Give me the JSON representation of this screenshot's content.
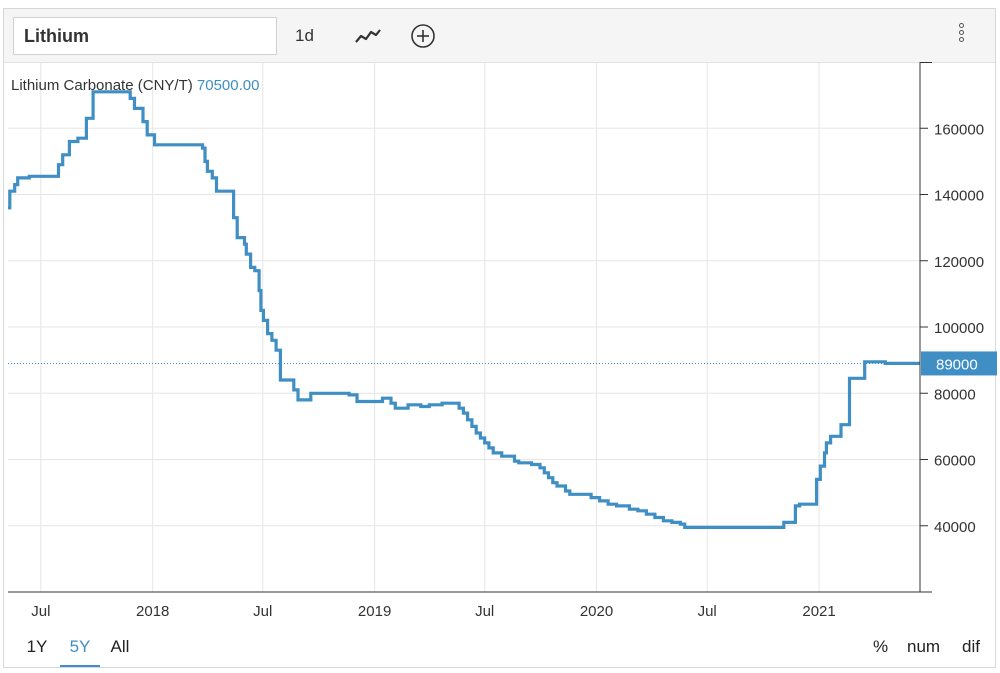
{
  "toolbar": {
    "symbol": "Lithium",
    "interval": "1d"
  },
  "legend": {
    "series_name": "Lithium Carbonate (CNY/T)",
    "series_value": "70500.00"
  },
  "ranges": {
    "one_year": "1Y",
    "five_year": "5Y",
    "all": "All",
    "active": "5Y"
  },
  "modes": {
    "percent": "%",
    "num": "num",
    "dif": "dif"
  },
  "colors": {
    "series": "#3f8ec4",
    "grid": "#e6e6e6"
  },
  "chart_data": {
    "type": "line",
    "title": "",
    "xlabel": "",
    "ylabel": "",
    "ylim": [
      20000,
      180000
    ],
    "y_ticks": [
      40000,
      60000,
      80000,
      100000,
      120000,
      140000,
      160000
    ],
    "y_tick_labels": [
      "40000",
      "60000",
      "80000",
      "100000",
      "120000",
      "140000",
      "160000"
    ],
    "x_ticks": [
      {
        "date": "2017-07-01",
        "label": "Jul"
      },
      {
        "date": "2018-01-01",
        "label": "2018"
      },
      {
        "date": "2018-07-01",
        "label": "Jul"
      },
      {
        "date": "2019-01-01",
        "label": "2019"
      },
      {
        "date": "2019-07-01",
        "label": "Jul"
      },
      {
        "date": "2020-01-01",
        "label": "2020"
      },
      {
        "date": "2020-07-01",
        "label": "Jul"
      },
      {
        "date": "2021-01-01",
        "label": "2021"
      }
    ],
    "x_range": [
      "2017-05-08",
      "2021-06-16"
    ],
    "last_value_label": "89000",
    "last_value": 89000,
    "series": [
      {
        "points": [
          [
            "2017-05-08",
            136000
          ],
          [
            "2017-05-11",
            136000
          ],
          [
            "2017-05-11",
            141000
          ],
          [
            "2017-05-19",
            141000
          ],
          [
            "2017-05-19",
            143000
          ],
          [
            "2017-05-24",
            143000
          ],
          [
            "2017-05-24",
            145000
          ],
          [
            "2017-06-12",
            145000
          ],
          [
            "2017-06-12",
            145500
          ],
          [
            "2017-07-30",
            145500
          ],
          [
            "2017-07-30",
            149000
          ],
          [
            "2017-08-06",
            149000
          ],
          [
            "2017-08-06",
            152000
          ],
          [
            "2017-08-17",
            152000
          ],
          [
            "2017-08-17",
            156000
          ],
          [
            "2017-08-31",
            156000
          ],
          [
            "2017-08-31",
            157000
          ],
          [
            "2017-09-14",
            157000
          ],
          [
            "2017-09-14",
            163000
          ],
          [
            "2017-09-25",
            163000
          ],
          [
            "2017-09-25",
            171000
          ],
          [
            "2017-11-25",
            171000
          ],
          [
            "2017-11-25",
            169000
          ],
          [
            "2017-12-02",
            169000
          ],
          [
            "2017-12-02",
            166000
          ],
          [
            "2017-12-16",
            166000
          ],
          [
            "2017-12-16",
            162000
          ],
          [
            "2017-12-23",
            162000
          ],
          [
            "2017-12-23",
            158000
          ],
          [
            "2018-01-04",
            158000
          ],
          [
            "2018-01-04",
            155000
          ],
          [
            "2018-03-24",
            155000
          ],
          [
            "2018-03-24",
            154000
          ],
          [
            "2018-03-28",
            154000
          ],
          [
            "2018-03-28",
            150000
          ],
          [
            "2018-04-01",
            150000
          ],
          [
            "2018-04-01",
            147000
          ],
          [
            "2018-04-09",
            147000
          ],
          [
            "2018-04-09",
            145000
          ],
          [
            "2018-04-16",
            145000
          ],
          [
            "2018-04-16",
            141000
          ],
          [
            "2018-05-14",
            141000
          ],
          [
            "2018-05-14",
            133000
          ],
          [
            "2018-05-20",
            133000
          ],
          [
            "2018-05-20",
            127000
          ],
          [
            "2018-06-01",
            127000
          ],
          [
            "2018-06-01",
            125000
          ],
          [
            "2018-06-04",
            125000
          ],
          [
            "2018-06-04",
            122000
          ],
          [
            "2018-06-11",
            122000
          ],
          [
            "2018-06-11",
            118000
          ],
          [
            "2018-06-18",
            118000
          ],
          [
            "2018-06-18",
            117000
          ],
          [
            "2018-06-25",
            117000
          ],
          [
            "2018-06-25",
            111000
          ],
          [
            "2018-06-28",
            111000
          ],
          [
            "2018-06-28",
            105000
          ],
          [
            "2018-07-02",
            105000
          ],
          [
            "2018-07-02",
            102000
          ],
          [
            "2018-07-09",
            102000
          ],
          [
            "2018-07-09",
            98000
          ],
          [
            "2018-07-16",
            98000
          ],
          [
            "2018-07-16",
            96000
          ],
          [
            "2018-07-23",
            96000
          ],
          [
            "2018-07-23",
            93000
          ],
          [
            "2018-07-30",
            93000
          ],
          [
            "2018-07-30",
            84000
          ],
          [
            "2018-08-21",
            84000
          ],
          [
            "2018-08-21",
            81000
          ],
          [
            "2018-08-28",
            81000
          ],
          [
            "2018-08-28",
            78000
          ],
          [
            "2018-09-18",
            78000
          ],
          [
            "2018-09-18",
            80000
          ],
          [
            "2018-11-20",
            80000
          ],
          [
            "2018-11-20",
            79500
          ],
          [
            "2018-12-03",
            79500
          ],
          [
            "2018-12-03",
            77500
          ],
          [
            "2019-01-14",
            77500
          ],
          [
            "2019-01-14",
            78500
          ],
          [
            "2019-01-28",
            78500
          ],
          [
            "2019-01-28",
            77000
          ],
          [
            "2019-02-04",
            77000
          ],
          [
            "2019-02-04",
            75500
          ],
          [
            "2019-02-25",
            75500
          ],
          [
            "2019-02-25",
            76500
          ],
          [
            "2019-03-18",
            76500
          ],
          [
            "2019-03-18",
            76000
          ],
          [
            "2019-04-01",
            76000
          ],
          [
            "2019-04-01",
            76500
          ],
          [
            "2019-04-22",
            76500
          ],
          [
            "2019-04-22",
            77000
          ],
          [
            "2019-05-20",
            77000
          ],
          [
            "2019-05-20",
            75500
          ],
          [
            "2019-05-27",
            75500
          ],
          [
            "2019-05-27",
            74000
          ],
          [
            "2019-06-03",
            74000
          ],
          [
            "2019-06-03",
            72000
          ],
          [
            "2019-06-10",
            72000
          ],
          [
            "2019-06-10",
            70000
          ],
          [
            "2019-06-17",
            70000
          ],
          [
            "2019-06-17",
            68000
          ],
          [
            "2019-06-24",
            68000
          ],
          [
            "2019-06-24",
            66500
          ],
          [
            "2019-07-01",
            66500
          ],
          [
            "2019-07-01",
            65000
          ],
          [
            "2019-07-08",
            65000
          ],
          [
            "2019-07-08",
            63500
          ],
          [
            "2019-07-15",
            63500
          ],
          [
            "2019-07-15",
            62000
          ],
          [
            "2019-07-29",
            62000
          ],
          [
            "2019-07-29",
            61000
          ],
          [
            "2019-08-19",
            61000
          ],
          [
            "2019-08-19",
            59500
          ],
          [
            "2019-08-26",
            59500
          ],
          [
            "2019-08-26",
            59000
          ],
          [
            "2019-09-16",
            59000
          ],
          [
            "2019-09-16",
            58500
          ],
          [
            "2019-09-30",
            58500
          ],
          [
            "2019-09-30",
            57500
          ],
          [
            "2019-10-07",
            57500
          ],
          [
            "2019-10-07",
            56000
          ],
          [
            "2019-10-14",
            56000
          ],
          [
            "2019-10-14",
            54500
          ],
          [
            "2019-10-21",
            54500
          ],
          [
            "2019-10-21",
            53000
          ],
          [
            "2019-10-28",
            53000
          ],
          [
            "2019-10-28",
            52000
          ],
          [
            "2019-11-11",
            52000
          ],
          [
            "2019-11-11",
            50500
          ],
          [
            "2019-11-18",
            50500
          ],
          [
            "2019-11-18",
            49500
          ],
          [
            "2019-12-23",
            49500
          ],
          [
            "2019-12-23",
            48500
          ],
          [
            "2020-01-06",
            48500
          ],
          [
            "2020-01-06",
            47500
          ],
          [
            "2020-01-20",
            47500
          ],
          [
            "2020-01-20",
            46500
          ],
          [
            "2020-02-03",
            46500
          ],
          [
            "2020-02-03",
            46000
          ],
          [
            "2020-02-24",
            46000
          ],
          [
            "2020-02-24",
            45000
          ],
          [
            "2020-03-09",
            45000
          ],
          [
            "2020-03-09",
            44500
          ],
          [
            "2020-03-23",
            44500
          ],
          [
            "2020-03-23",
            43500
          ],
          [
            "2020-04-06",
            43500
          ],
          [
            "2020-04-06",
            42500
          ],
          [
            "2020-04-20",
            42500
          ],
          [
            "2020-04-20",
            41500
          ],
          [
            "2020-05-04",
            41500
          ],
          [
            "2020-05-04",
            41000
          ],
          [
            "2020-05-18",
            41000
          ],
          [
            "2020-05-18",
            40500
          ],
          [
            "2020-05-25",
            40500
          ],
          [
            "2020-05-25",
            39500
          ],
          [
            "2020-11-04",
            39500
          ],
          [
            "2020-11-04",
            41000
          ],
          [
            "2020-11-23",
            41000
          ],
          [
            "2020-11-23",
            46000
          ],
          [
            "2020-11-30",
            46000
          ],
          [
            "2020-11-30",
            46500
          ],
          [
            "2020-12-28",
            46500
          ],
          [
            "2020-12-28",
            54000
          ],
          [
            "2021-01-03",
            54000
          ],
          [
            "2021-01-03",
            58000
          ],
          [
            "2021-01-10",
            58000
          ],
          [
            "2021-01-10",
            62000
          ],
          [
            "2021-01-13",
            62000
          ],
          [
            "2021-01-13",
            65000
          ],
          [
            "2021-01-20",
            65000
          ],
          [
            "2021-01-20",
            67000
          ],
          [
            "2021-02-06",
            67000
          ],
          [
            "2021-02-06",
            70500
          ],
          [
            "2021-02-20",
            70500
          ],
          [
            "2021-02-20",
            84500
          ],
          [
            "2021-03-17",
            84500
          ],
          [
            "2021-03-17",
            89500
          ],
          [
            "2021-04-20",
            89500
          ],
          [
            "2021-04-20",
            89000
          ],
          [
            "2021-06-16",
            89000
          ]
        ]
      }
    ]
  }
}
